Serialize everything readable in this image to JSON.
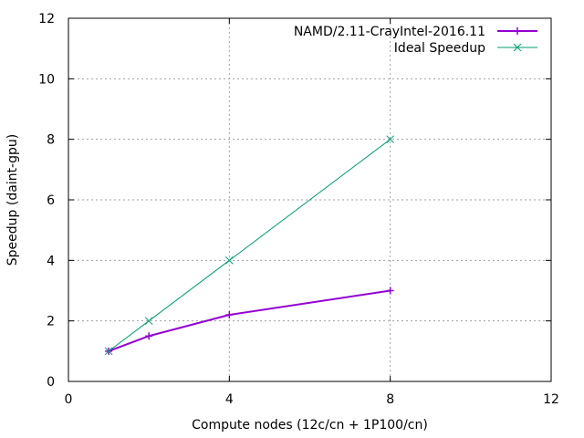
{
  "chart_data": {
    "type": "line",
    "title": "",
    "xlabel": "Compute nodes (12c/cn + 1P100/cn)",
    "ylabel": "Speedup (daint-gpu)",
    "xlim": [
      0,
      12
    ],
    "ylim": [
      0,
      12
    ],
    "xticks": [
      0,
      4,
      8,
      12
    ],
    "yticks": [
      0,
      2,
      4,
      6,
      8,
      10,
      12
    ],
    "grid": true,
    "legend_position": "top-right",
    "series": [
      {
        "name": "NAMD/2.11-CrayIntel-2016.11",
        "color": "#9400d3",
        "marker": "plus",
        "x": [
          1,
          2,
          4,
          8
        ],
        "y": [
          1.0,
          1.5,
          2.2,
          3.0
        ]
      },
      {
        "name": "Ideal Speedup",
        "color": "#009e73",
        "marker": "cross",
        "x": [
          1,
          2,
          4,
          8
        ],
        "y": [
          1,
          2,
          4,
          8
        ]
      }
    ]
  }
}
